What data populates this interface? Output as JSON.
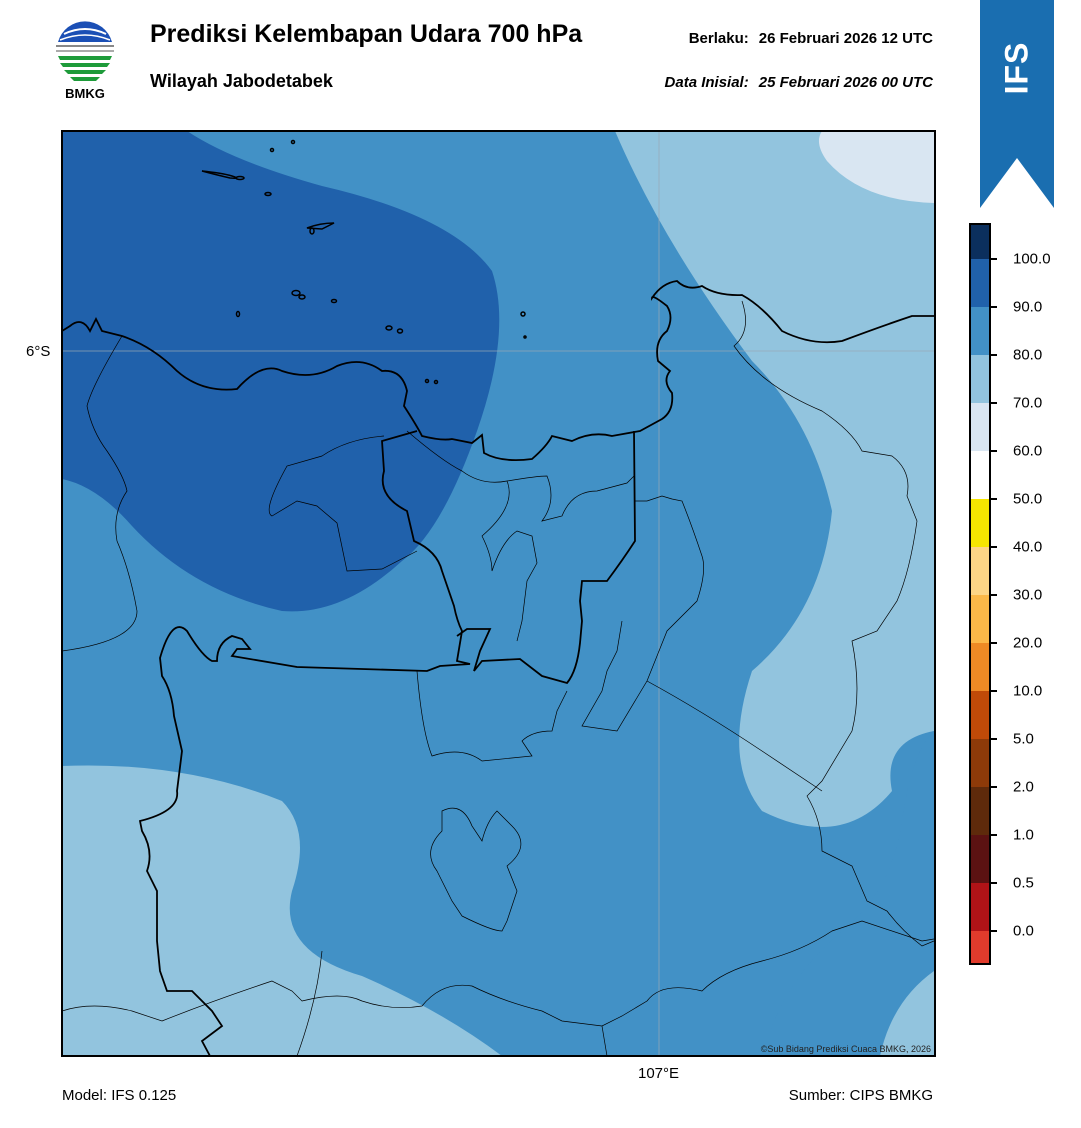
{
  "header": {
    "logo_text": "BMKG",
    "title": "Prediksi Kelembapan Udara 700 hPa",
    "subtitle": "Wilayah Jabodetabek",
    "valid_label": "Berlaku:",
    "valid_time": "26 Februari 2026 12 UTC",
    "init_label": "Data Inisial:",
    "init_time": "25 Februari 2026 00 UTC",
    "model_badge": "IFS"
  },
  "map": {
    "lat_label": "6°S",
    "lon_label": "107°E",
    "credit": "©Sub Bidang Prediksi Cuaca BMKG, 2026"
  },
  "legend": {
    "labels": [
      "100.0",
      "90.0",
      "80.0",
      "70.0",
      "60.0",
      "50.0",
      "40.0",
      "30.0",
      "20.0",
      "10.0",
      "5.0",
      "2.0",
      "1.0",
      "0.5",
      "0.0"
    ],
    "colors": [
      "#e03b2c",
      "#b01317",
      "#5b1212",
      "#5e2a0b",
      "#8d3a09",
      "#c04a08",
      "#ee8a25",
      "#fbb848",
      "#fdd585",
      "#f6e600",
      "#ffffff",
      "#d9e6f2",
      "#92c4de",
      "#4291c6",
      "#2061ab",
      "#0b2f5d",
      "#2a0a42"
    ]
  },
  "footer": {
    "model": "Model: IFS 0.125",
    "source": "Sumber: CIPS BMKG"
  },
  "colors": {
    "ribbon": "#1a6eb0",
    "humidity_80_90": "#2061ab",
    "humidity_70_80": "#4291c6",
    "humidity_60_70": "#92c4de",
    "humidity_50_60": "#d9e6f2"
  }
}
